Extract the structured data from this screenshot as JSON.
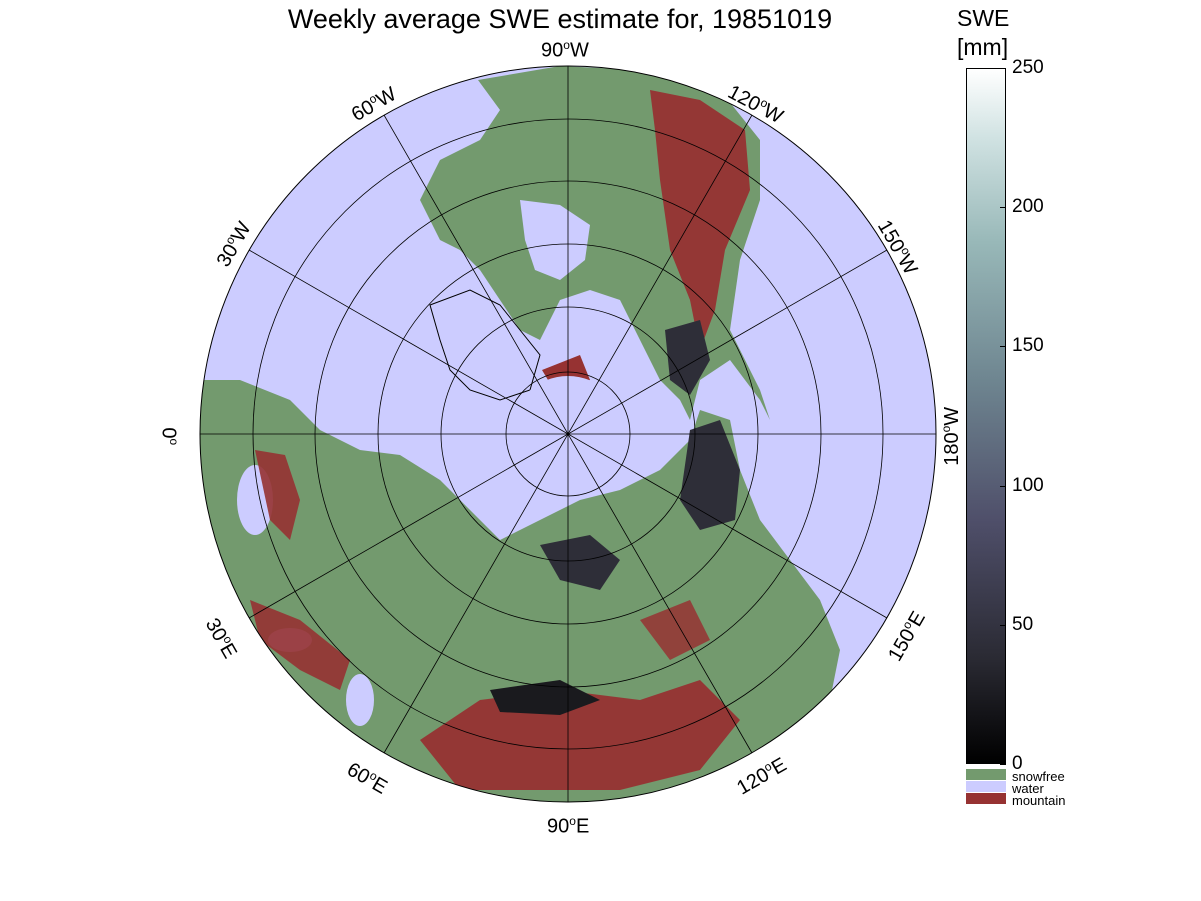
{
  "title": "Weekly average SWE estimate for, 19851019",
  "map": {
    "type": "polar-stereographic-north",
    "grid": true,
    "lon_labels": [
      {
        "label": "90",
        "dir": "W",
        "sup": "o"
      },
      {
        "label": "120",
        "dir": "W",
        "sup": "o"
      },
      {
        "label": "150",
        "dir": "W",
        "sup": "o"
      },
      {
        "label": "180",
        "dir": "W",
        "sup": "o"
      },
      {
        "label": "150",
        "dir": "E",
        "sup": "o"
      },
      {
        "label": "120",
        "dir": "E",
        "sup": "o"
      },
      {
        "label": "90",
        "dir": "E",
        "sup": "o"
      },
      {
        "label": "60",
        "dir": "E",
        "sup": "o"
      },
      {
        "label": "30",
        "dir": "E",
        "sup": "o"
      },
      {
        "label": "0",
        "dir": "",
        "sup": "o"
      },
      {
        "label": "30",
        "dir": "W",
        "sup": "o"
      },
      {
        "label": "60",
        "dir": "W",
        "sup": "o"
      }
    ]
  },
  "colorbar": {
    "title_line1": "SWE",
    "title_line2": "[mm]",
    "ticks": [
      "0",
      "50",
      "100",
      "150",
      "200",
      "250"
    ],
    "range": [
      0,
      250
    ]
  },
  "legend": [
    {
      "label": "snowfree",
      "color": "#739a6e"
    },
    {
      "label": "water",
      "color": "#ccccff"
    },
    {
      "label": "mountain",
      "color": "#963232"
    }
  ],
  "colors": {
    "land": "#739a6e",
    "water": "#ccccff",
    "mountain": "#963232",
    "snow_dark": "#2e2e38"
  }
}
